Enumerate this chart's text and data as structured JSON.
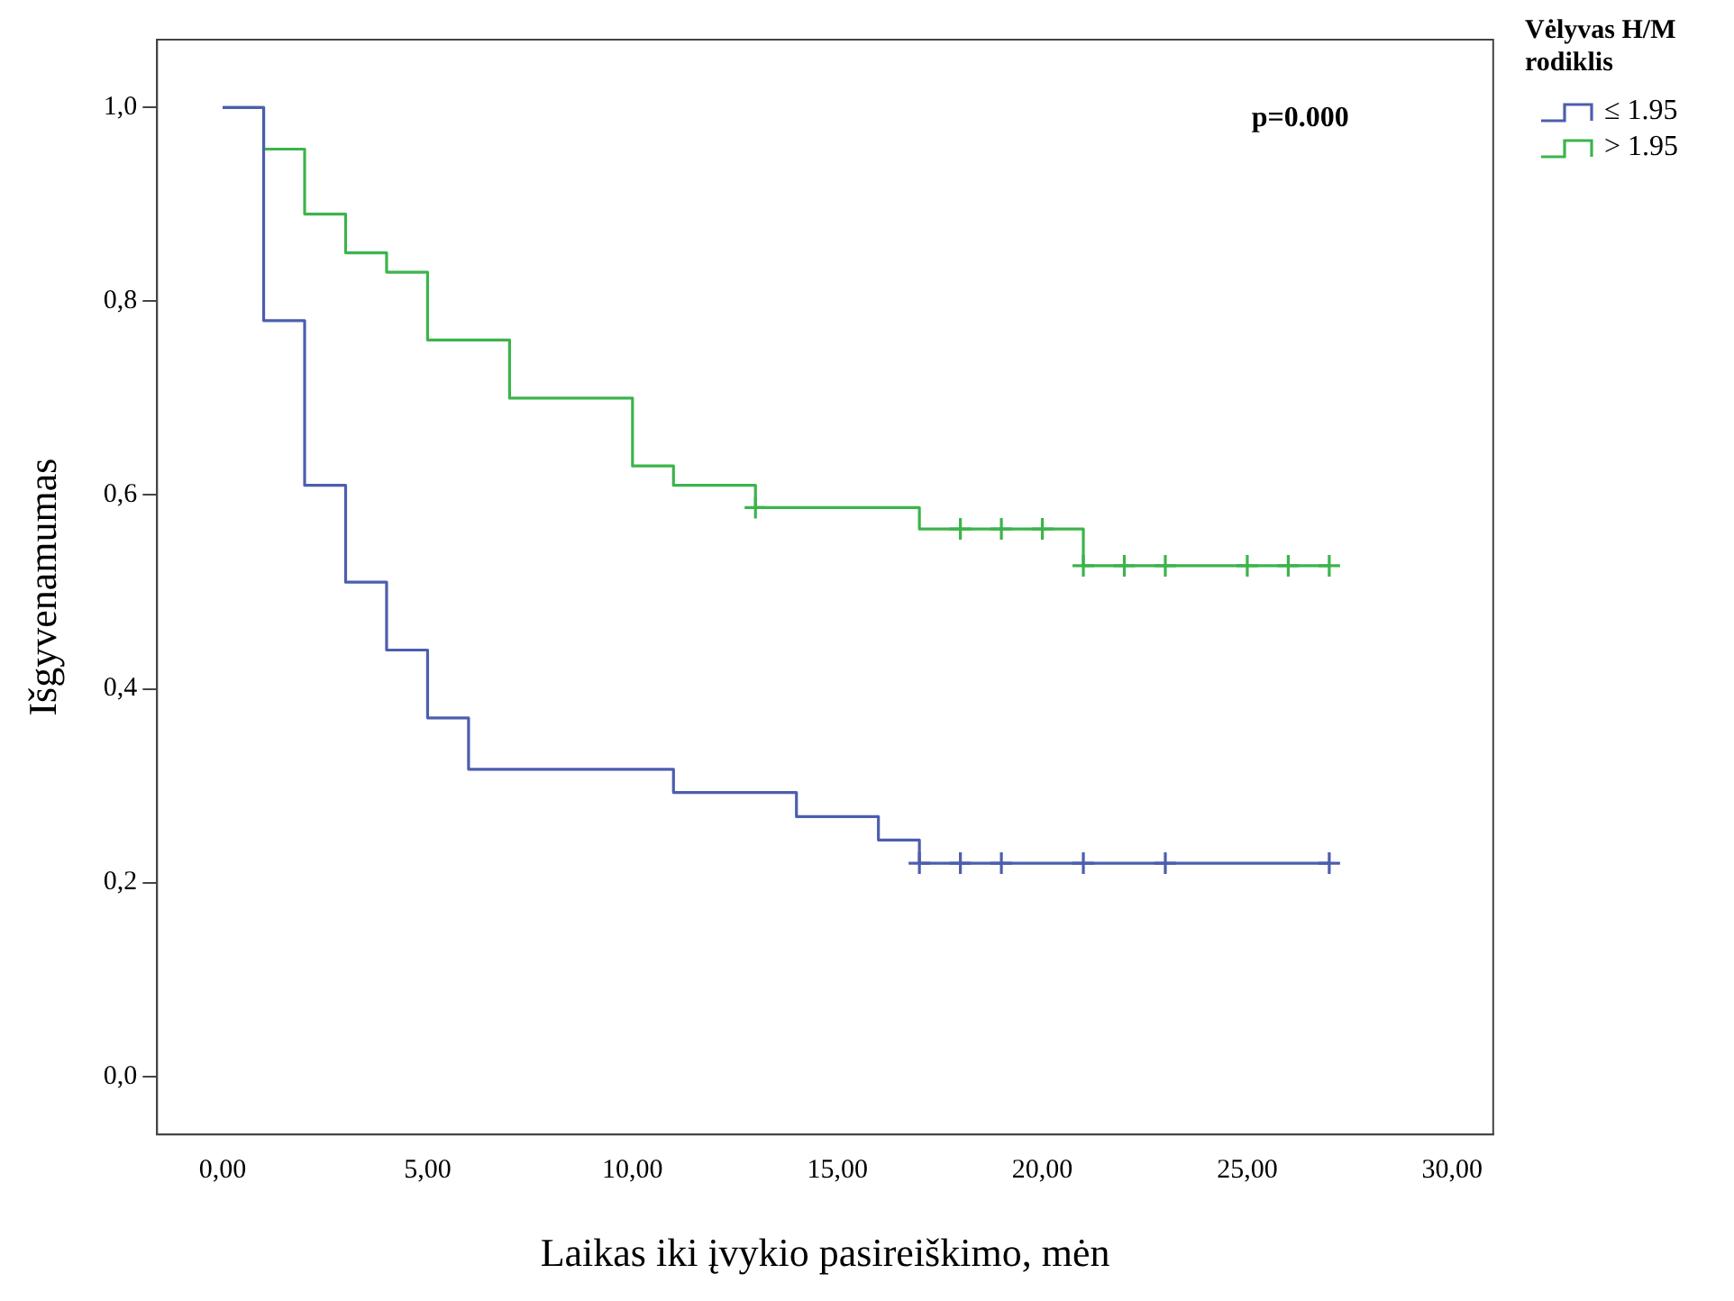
{
  "chart_data": {
    "type": "step",
    "xlabel": "Laikas iki įvykio pasireiškimo, mėn",
    "ylabel": "Išgyvenamumas",
    "legend_title": "Vėlyvas H/M rodiklis",
    "legend": "top right",
    "grid": false,
    "marker": "none",
    "line_style": "solid",
    "annotations": [
      "p=0.000"
    ],
    "xlim": [
      -1.6,
      31
    ],
    "ylim": [
      -0.06,
      1.07
    ],
    "xticks": [
      {
        "value": 0,
        "label": "0,00"
      },
      {
        "value": 5,
        "label": "5,00"
      },
      {
        "value": 10,
        "label": "10,00"
      },
      {
        "value": 15,
        "label": "15,00"
      },
      {
        "value": 20,
        "label": "20,00"
      },
      {
        "value": 25,
        "label": "25,00"
      },
      {
        "value": 30,
        "label": "30,00"
      }
    ],
    "yticks": [
      {
        "value": 0,
        "label": "0,0"
      },
      {
        "value": 0.2,
        "label": "0,2"
      },
      {
        "value": 0.4,
        "label": "0,4"
      },
      {
        "value": 0.6,
        "label": "0,6"
      },
      {
        "value": 0.8,
        "label": "0,8"
      },
      {
        "value": 1,
        "label": "1,0"
      }
    ],
    "series": [
      {
        "name": "≤ 1.95",
        "color": "#4c5eae",
        "x": [
          0,
          1,
          2,
          3,
          4,
          5,
          6,
          11,
          14,
          16,
          17,
          27
        ],
        "values": [
          1,
          0.78,
          0.61,
          0.51,
          0.44,
          0.37,
          0.317,
          0.293,
          0.268,
          0.244,
          0.22,
          0.22
        ]
      },
      {
        "name": "> 1.95",
        "color": "#3cb44b",
        "x": [
          0,
          1,
          2,
          3,
          4,
          5,
          7,
          10,
          11,
          13,
          17,
          21,
          27
        ],
        "values": [
          1,
          0.957,
          0.89,
          0.85,
          0.83,
          0.76,
          0.7,
          0.63,
          0.61,
          0.587,
          0.565,
          0.527,
          0.527
        ]
      },
      {
        "type": "scatter",
        "marker": "cross",
        "color": "#4c5eae",
        "x": [
          17,
          18,
          19,
          21,
          23,
          27
        ],
        "values": [
          0.22,
          0.22,
          0.22,
          0.22,
          0.22,
          0.22
        ]
      },
      {
        "type": "scatter",
        "marker": "cross",
        "color": "#3cb44b",
        "x": [
          13,
          18,
          19,
          20,
          21,
          22,
          23,
          25,
          26,
          27
        ],
        "values": [
          0.587,
          0.565,
          0.565,
          0.565,
          0.527,
          0.527,
          0.527,
          0.527,
          0.527,
          0.527
        ]
      }
    ]
  }
}
